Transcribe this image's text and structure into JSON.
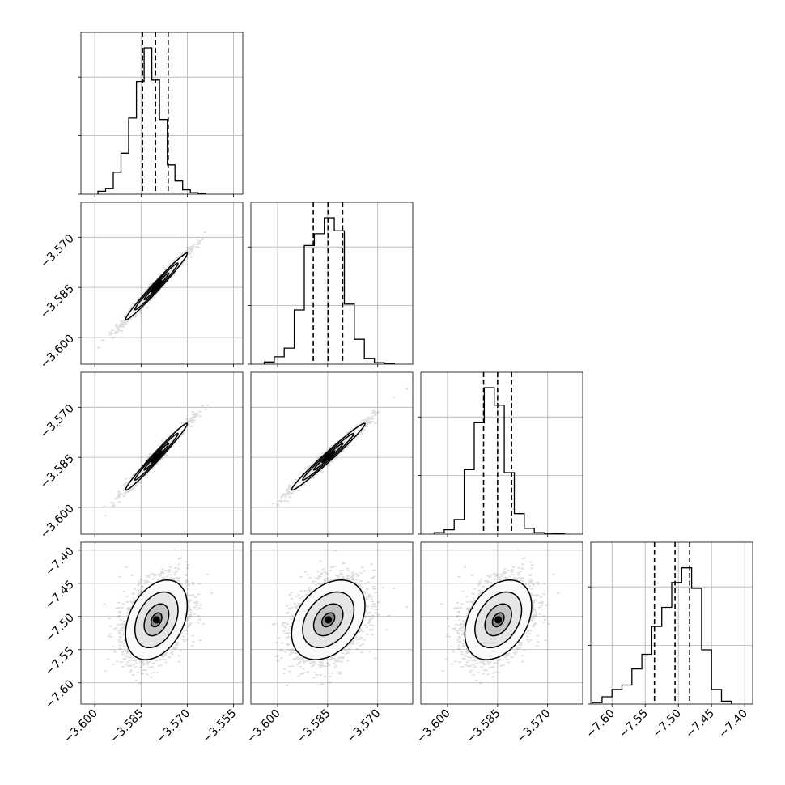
{
  "chart_data": {
    "type": "corner",
    "parameters": 4,
    "axes": [
      {
        "range": [
          -3.6045,
          -3.552
        ],
        "ticks": [
          -3.6,
          -3.585,
          -3.57,
          -3.555
        ],
        "tick_labels": [
          "−3.600",
          "−3.585",
          "−3.570",
          "−3.555"
        ]
      },
      {
        "range": [
          -3.608,
          -3.5595
        ],
        "ticks": [
          -3.6,
          -3.585,
          -3.57
        ],
        "tick_labels": [
          "−3.600",
          "−3.585",
          "−3.570"
        ]
      },
      {
        "range": [
          -3.608,
          -3.5595
        ],
        "ticks": [
          -3.6,
          -3.585,
          -3.57
        ],
        "tick_labels": [
          "−3.600",
          "−3.585",
          "−3.570"
        ]
      },
      {
        "range": [
          -7.632,
          -7.388
        ],
        "ticks": [
          -7.6,
          -7.55,
          -7.5,
          -7.45,
          -7.4
        ],
        "tick_labels": [
          "−7.60",
          "−7.55",
          "−7.50",
          "−7.45",
          "−7.40"
        ]
      }
    ],
    "row_axes": [
      {
        "range": [
          -3.608,
          -3.5595
        ],
        "ticks": [
          -3.6,
          -3.585,
          -3.57
        ],
        "tick_labels": [
          "−3.600",
          "−3.585",
          "−3.570"
        ]
      },
      {
        "range": [
          -3.608,
          -3.5595
        ],
        "ticks": [
          -3.6,
          -3.585,
          -3.57
        ],
        "tick_labels": [
          "−3.600",
          "−3.585",
          "−3.570"
        ]
      },
      {
        "range": [
          -7.632,
          -7.388
        ],
        "ticks": [
          -7.6,
          -7.55,
          -7.5,
          -7.45,
          -7.4
        ],
        "tick_labels": [
          "−7.60",
          "−7.55",
          "−7.50",
          "−7.45",
          "−7.40"
        ]
      }
    ],
    "histograms": [
      {
        "bin_edges": [
          -3.599,
          -3.5965,
          -3.594,
          -3.5915,
          -3.589,
          -3.5865,
          -3.584,
          -3.5815,
          -3.579,
          -3.5765,
          -3.574,
          -3.5715,
          -3.569,
          -3.5665,
          -3.564
        ],
        "counts": [
          0.02,
          0.04,
          0.15,
          0.28,
          0.52,
          0.77,
          1.0,
          0.78,
          0.51,
          0.2,
          0.09,
          0.03,
          0.01,
          0.005
        ],
        "quantiles": [
          -3.5845,
          -3.5803,
          -3.5762
        ]
      },
      {
        "bin_edges": [
          -3.604,
          -3.601,
          -3.598,
          -3.595,
          -3.592,
          -3.589,
          -3.586,
          -3.583,
          -3.58,
          -3.577,
          -3.574,
          -3.571,
          -3.568,
          -3.565
        ],
        "counts": [
          0.015,
          0.05,
          0.11,
          0.37,
          0.81,
          0.89,
          1.0,
          0.91,
          0.41,
          0.17,
          0.04,
          0.01,
          0.005
        ],
        "quantiles": [
          -3.5893,
          -3.5849,
          -3.5805
        ]
      },
      {
        "bin_edges": [
          -3.604,
          -3.601,
          -3.598,
          -3.595,
          -3.592,
          -3.589,
          -3.586,
          -3.583,
          -3.58,
          -3.577,
          -3.574,
          -3.571,
          -3.568,
          -3.565
        ],
        "counts": [
          0.01,
          0.03,
          0.1,
          0.44,
          0.76,
          1.0,
          0.88,
          0.42,
          0.14,
          0.04,
          0.01,
          0.005,
          0.002
        ],
        "quantiles": [
          -3.5892,
          -3.585,
          -3.5808
        ]
      },
      {
        "bin_edges": [
          -7.63,
          -7.615,
          -7.6,
          -7.585,
          -7.57,
          -7.555,
          -7.54,
          -7.525,
          -7.51,
          -7.495,
          -7.48,
          -7.465,
          -7.45,
          -7.435,
          -7.42
        ],
        "counts": [
          0.01,
          0.05,
          0.1,
          0.13,
          0.24,
          0.34,
          0.53,
          0.66,
          0.83,
          0.93,
          0.79,
          0.37,
          0.1,
          0.02
        ],
        "quantiles": [
          -7.536,
          -7.505,
          -7.483
        ]
      }
    ],
    "pairs": [
      {
        "row": 1,
        "col": 0,
        "center": [
          -3.58,
          -3.5847
        ],
        "sd": [
          0.005,
          0.005
        ],
        "rho": 0.985,
        "n": 1600
      },
      {
        "row": 2,
        "col": 0,
        "center": [
          -3.58,
          -3.5848
        ],
        "sd": [
          0.005,
          0.005
        ],
        "rho": 0.985,
        "n": 1600
      },
      {
        "row": 2,
        "col": 1,
        "center": [
          -3.5848,
          -3.5848
        ],
        "sd": [
          0.0055,
          0.005
        ],
        "rho": 0.985,
        "n": 1600
      },
      {
        "row": 3,
        "col": 0,
        "center": [
          -3.58,
          -7.505
        ],
        "sd": [
          0.005,
          0.03
        ],
        "rho": 0.35,
        "n": 2600
      },
      {
        "row": 3,
        "col": 1,
        "center": [
          -3.5848,
          -7.505
        ],
        "sd": [
          0.0055,
          0.03
        ],
        "rho": 0.35,
        "n": 2600
      },
      {
        "row": 3,
        "col": 2,
        "center": [
          -3.5848,
          -7.505
        ],
        "sd": [
          0.005,
          0.03
        ],
        "rho": 0.35,
        "n": 2600
      }
    ],
    "grid": true,
    "title": "",
    "xlabel": "",
    "ylabel": ""
  }
}
